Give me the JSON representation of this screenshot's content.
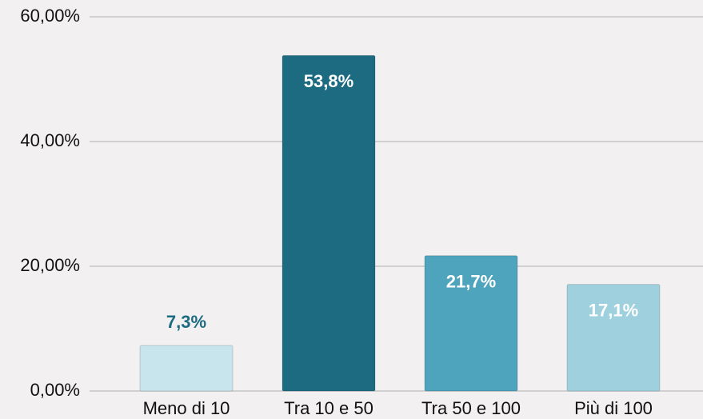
{
  "chart_data": {
    "type": "bar",
    "categories": [
      "Meno di 10",
      "Tra 10 e 50",
      "Tra 50 e 100",
      "Più di 100"
    ],
    "values": [
      7.3,
      53.8,
      21.7,
      17.1
    ],
    "value_labels": [
      "7,3%",
      "53,8%",
      "21,7%",
      "17,1%"
    ],
    "colors": [
      "#c8e4ec",
      "#1c6b80",
      "#4ea3bd",
      "#9fd0de"
    ],
    "ylim": [
      0,
      60
    ],
    "yticks": [
      {
        "value": 0,
        "label": "0,00%"
      },
      {
        "value": 20,
        "label": "20,00%"
      },
      {
        "value": 40,
        "label": "40,00%"
      },
      {
        "value": 60,
        "label": "60,00%"
      }
    ],
    "grid": true
  }
}
